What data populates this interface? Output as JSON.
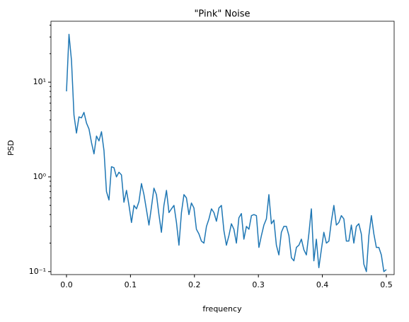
{
  "chart_data": {
    "type": "line",
    "title": "\"Pink\" Noise",
    "xlabel": "frequency",
    "ylabel": "PSD",
    "x": [
      0,
      0.0039,
      0.0078,
      0.0117,
      0.0156,
      0.0195,
      0.0234,
      0.0273,
      0.0313,
      0.0352,
      0.0391,
      0.043,
      0.0469,
      0.0508,
      0.0547,
      0.0586,
      0.0625,
      0.0664,
      0.0703,
      0.0742,
      0.0781,
      0.082,
      0.0859,
      0.0898,
      0.0938,
      0.0977,
      0.1016,
      0.1055,
      0.1094,
      0.1133,
      0.1172,
      0.1211,
      0.125,
      0.1289,
      0.1328,
      0.1367,
      0.1406,
      0.1445,
      0.1484,
      0.1523,
      0.1563,
      0.1602,
      0.1641,
      0.168,
      0.1719,
      0.1758,
      0.1797,
      0.1836,
      0.1875,
      0.1914,
      0.1953,
      0.1992,
      0.2031,
      0.207,
      0.2109,
      0.2148,
      0.2188,
      0.2227,
      0.2266,
      0.2305,
      0.2344,
      0.2383,
      0.2422,
      0.2461,
      0.25,
      0.2539,
      0.2578,
      0.2617,
      0.2656,
      0.2695,
      0.2734,
      0.2773,
      0.2813,
      0.2852,
      0.2891,
      0.293,
      0.2969,
      0.3008,
      0.3047,
      0.3086,
      0.3125,
      0.3164,
      0.3203,
      0.3242,
      0.3281,
      0.332,
      0.3359,
      0.3398,
      0.3438,
      0.3477,
      0.3516,
      0.3555,
      0.3594,
      0.3633,
      0.3672,
      0.3711,
      0.375,
      0.3789,
      0.3828,
      0.3867,
      0.3906,
      0.3945,
      0.3984,
      0.4023,
      0.4063,
      0.4102,
      0.4141,
      0.418,
      0.4219,
      0.4258,
      0.4297,
      0.4336,
      0.4375,
      0.4414,
      0.4453,
      0.4492,
      0.4531,
      0.457,
      0.4609,
      0.4648,
      0.4688,
      0.4727,
      0.4766,
      0.4805,
      0.4844,
      0.4883,
      0.4922,
      0.4961,
      0.5
    ],
    "values": [
      8,
      32,
      17,
      4.5,
      2.9,
      4.3,
      4.2,
      4.8,
      3.7,
      3.2,
      2.3,
      1.75,
      2.7,
      2.4,
      3.0,
      1.9,
      0.7,
      0.57,
      1.28,
      1.25,
      1.0,
      1.12,
      1.05,
      0.54,
      0.72,
      0.5,
      0.33,
      0.5,
      0.46,
      0.55,
      0.85,
      0.65,
      0.45,
      0.31,
      0.48,
      0.76,
      0.65,
      0.4,
      0.26,
      0.5,
      0.72,
      0.42,
      0.46,
      0.5,
      0.33,
      0.19,
      0.42,
      0.65,
      0.6,
      0.4,
      0.53,
      0.47,
      0.28,
      0.25,
      0.21,
      0.2,
      0.3,
      0.36,
      0.46,
      0.42,
      0.34,
      0.47,
      0.5,
      0.27,
      0.19,
      0.24,
      0.32,
      0.28,
      0.2,
      0.37,
      0.41,
      0.22,
      0.3,
      0.28,
      0.39,
      0.4,
      0.39,
      0.18,
      0.24,
      0.31,
      0.36,
      0.65,
      0.32,
      0.35,
      0.19,
      0.15,
      0.26,
      0.3,
      0.3,
      0.24,
      0.14,
      0.13,
      0.18,
      0.19,
      0.22,
      0.17,
      0.15,
      0.25,
      0.46,
      0.13,
      0.22,
      0.11,
      0.17,
      0.26,
      0.2,
      0.21,
      0.34,
      0.5,
      0.31,
      0.33,
      0.39,
      0.36,
      0.21,
      0.21,
      0.31,
      0.2,
      0.3,
      0.32,
      0.25,
      0.12,
      0.1,
      0.24,
      0.39,
      0.25,
      0.18,
      0.18,
      0.15,
      0.1,
      0.105
    ],
    "color": "#1f77b4",
    "yscale": "log",
    "xlim": [
      -0.0243,
      0.5122
    ],
    "ylim": [
      0.093,
      44
    ],
    "xticks": [
      {
        "value": 0,
        "label": "0.0"
      },
      0.1,
      0.2,
      0.3,
      0.4,
      0.5
    ],
    "yticks": [
      {
        "value": 0.1,
        "label": "10⁻¹"
      },
      {
        "value": 1,
        "label": "10⁰"
      },
      {
        "value": 10,
        "label": "10¹"
      }
    ],
    "yminorticks": [
      0.2,
      0.3,
      0.4,
      0.5,
      0.6,
      0.7,
      0.8,
      0.9,
      2,
      3,
      4,
      5,
      6,
      7,
      8,
      9,
      20,
      30,
      40
    ]
  }
}
